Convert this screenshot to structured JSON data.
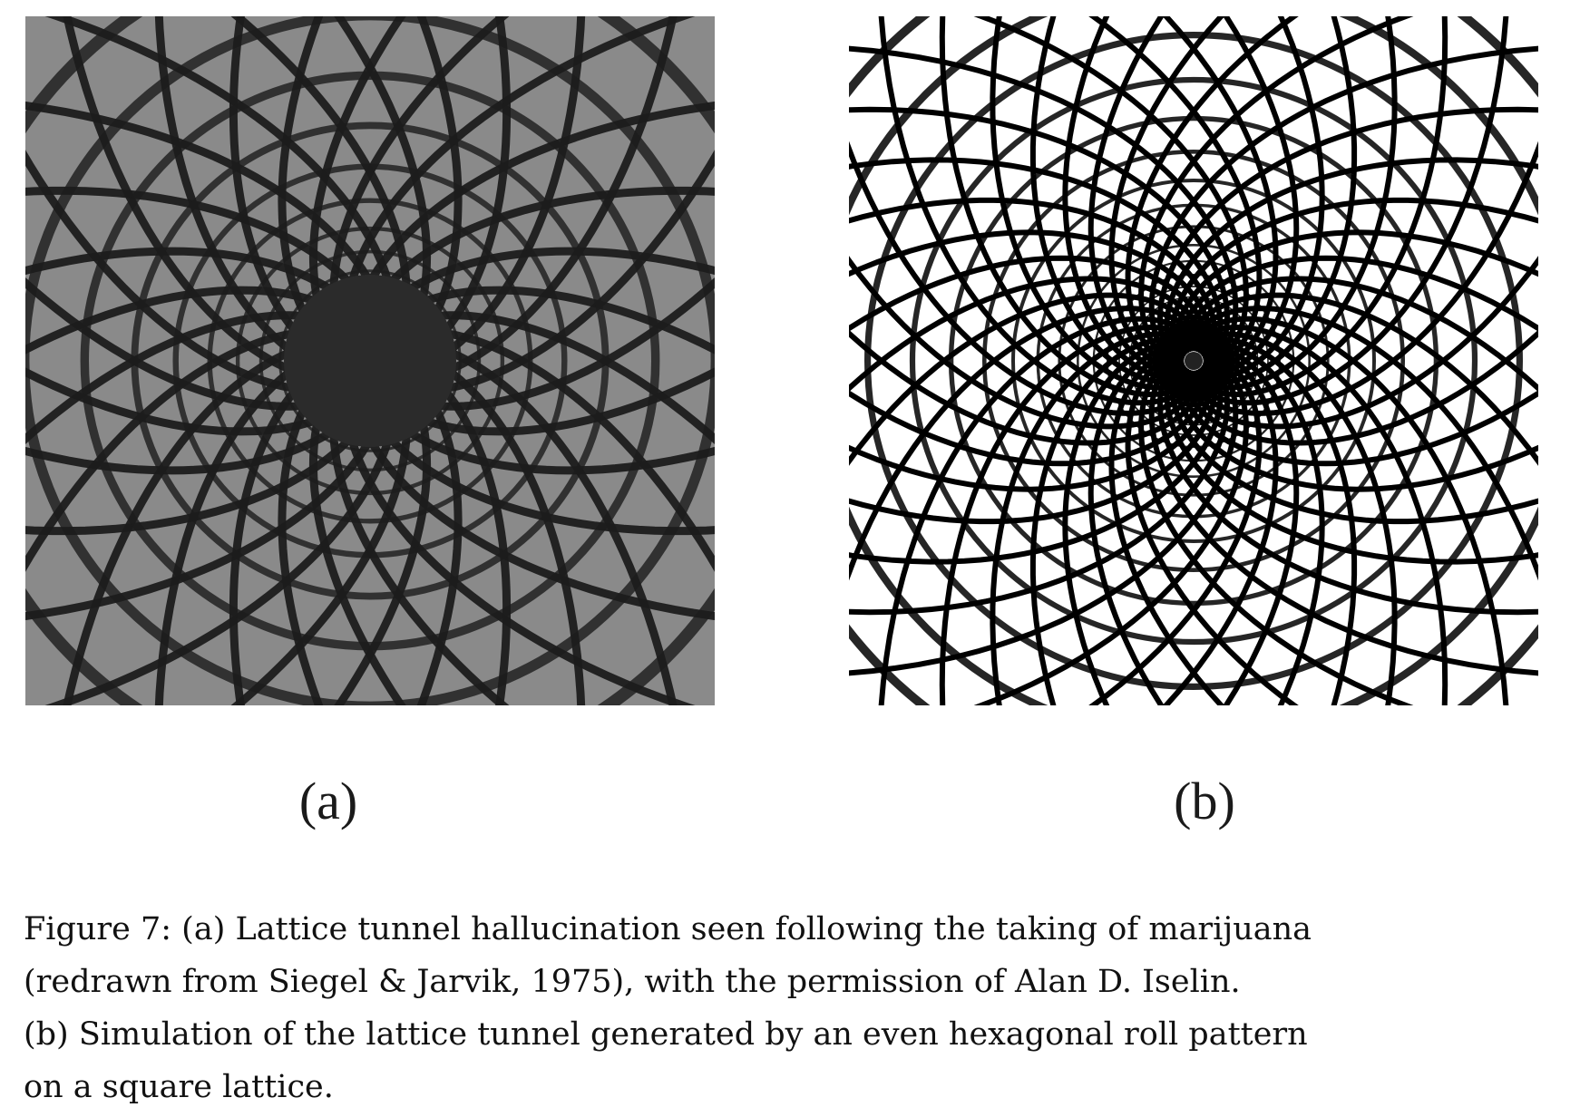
{
  "figure": {
    "panels": [
      {
        "label": "(a)",
        "image_kind": "grayscale-lattice-tunnel-hallucination-drawing",
        "colors": {
          "background": "#8a8a8a",
          "ink": "#1c1c1c"
        }
      },
      {
        "label": "(b)",
        "image_kind": "black-white-lattice-tunnel-simulation",
        "colors": {
          "background": "#ffffff",
          "ink": "#000000"
        }
      }
    ],
    "caption_lines": [
      "Figure 7:  (a) Lattice tunnel hallucination seen following the taking of marijuana",
      "(redrawn from Siegel & Jarvik, 1975), with the permission of Alan D. Iselin.",
      "(b) Simulation of the lattice tunnel generated by an even hexagonal roll pattern",
      "on a square lattice."
    ]
  }
}
